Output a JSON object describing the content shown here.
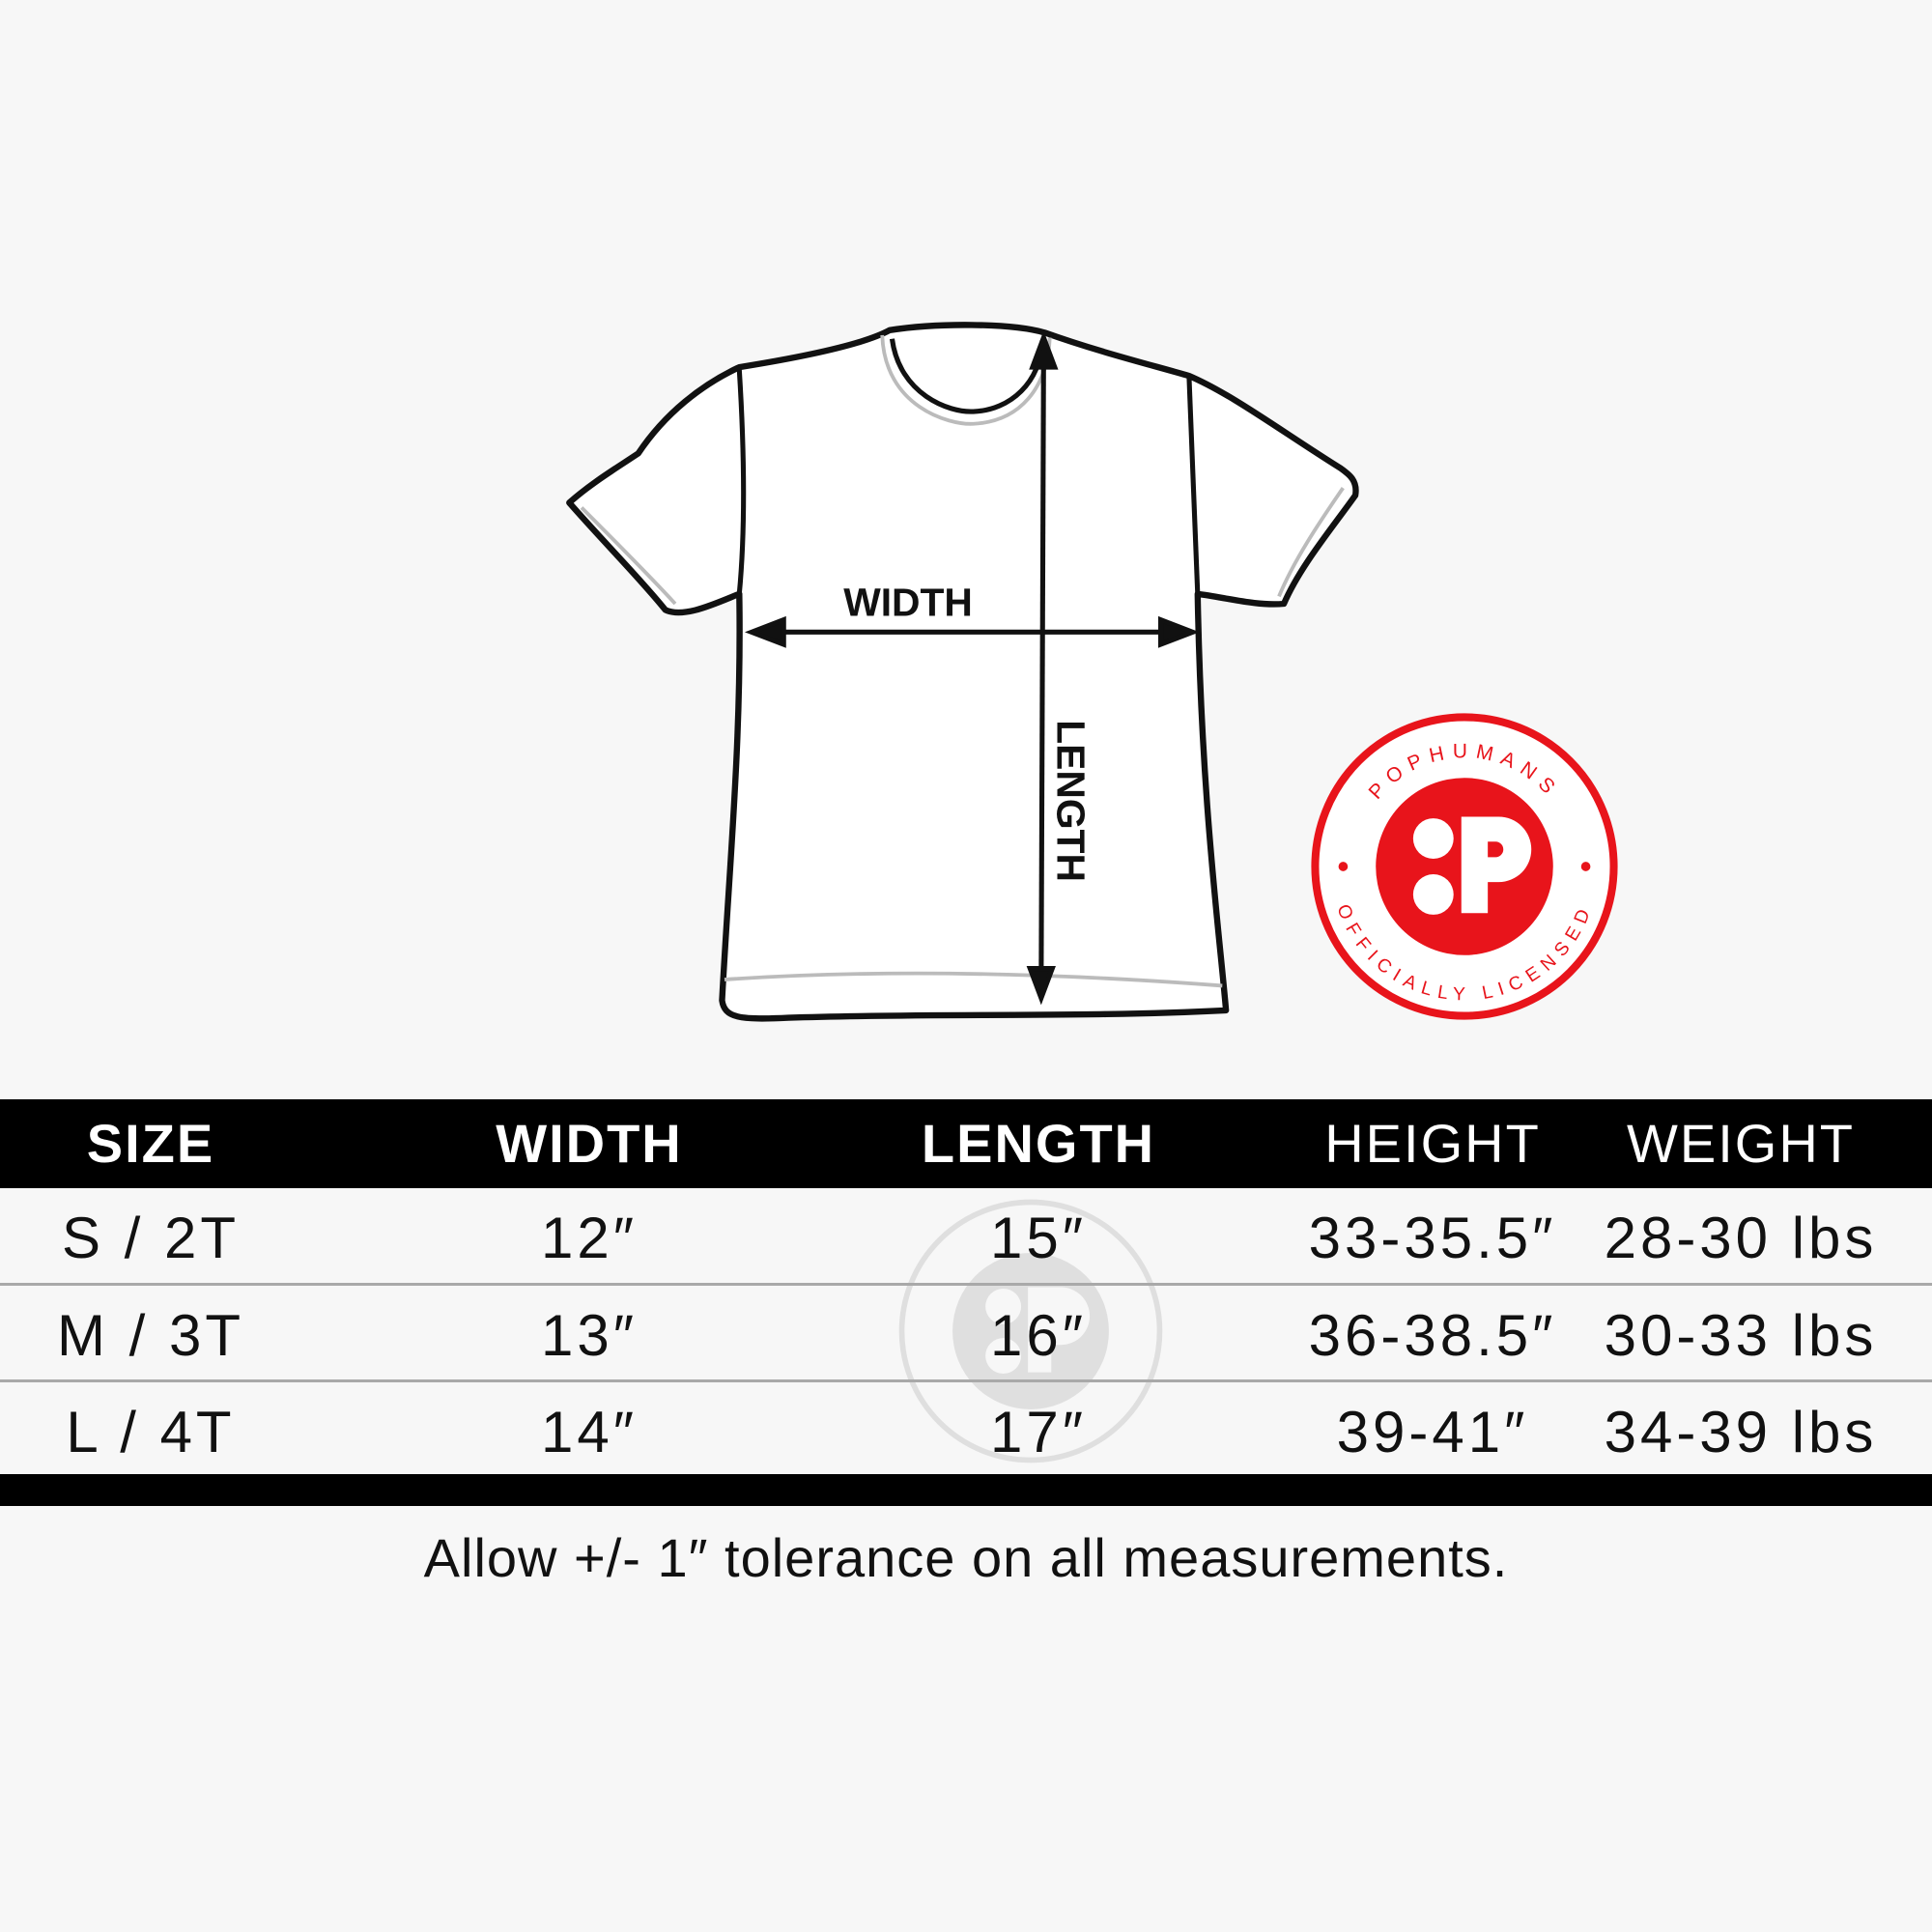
{
  "diagram": {
    "width_label": "WIDTH",
    "length_label": "LENGTH"
  },
  "logo": {
    "top_text": "POPHUMANS",
    "bottom_text": "OFFICIALLY LICENSED",
    "color": "#e8141b"
  },
  "table": {
    "headers": [
      "SIZE",
      "WIDTH",
      "LENGTH",
      "HEIGHT",
      "WEIGHT"
    ],
    "rows": [
      [
        "S / 2T",
        "12″",
        "15″",
        "33-35.5″",
        "28-30 lbs"
      ],
      [
        "M / 3T",
        "13″",
        "16″",
        "36-38.5″",
        "30-33 lbs"
      ],
      [
        "L / 4T",
        "14″",
        "17″",
        "39-41″",
        "34-39 lbs"
      ]
    ]
  },
  "footer": {
    "note": "Allow +/- 1″ tolerance on all measurements."
  }
}
